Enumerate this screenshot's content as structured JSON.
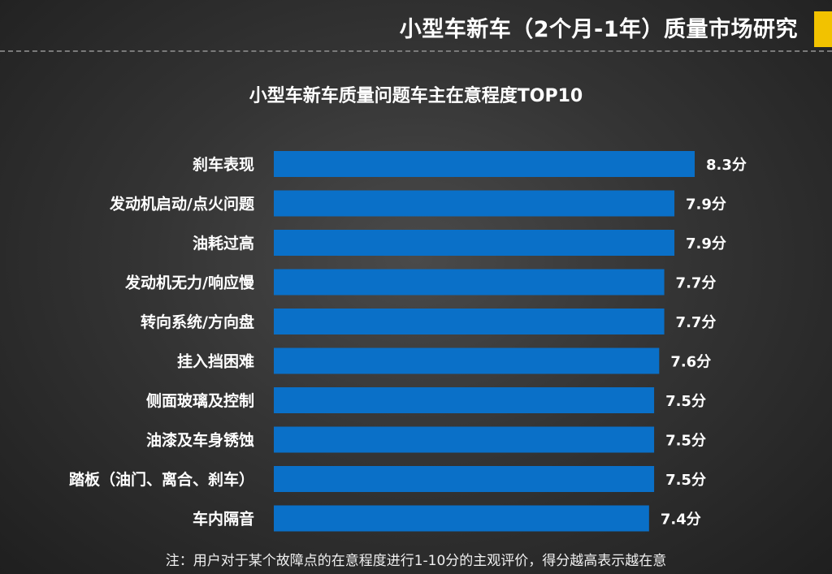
{
  "header": {
    "title": "小型车新车（2个月-1年）质量市场研究",
    "accent_color": "#f2c200"
  },
  "chart_data": {
    "type": "bar",
    "orientation": "horizontal",
    "title": "小型车新车质量问题车主在意程度TOP10",
    "categories": [
      "刹车表现",
      "发动机启动/点火问题",
      "油耗过高",
      "发动机无力/响应慢",
      "转向系统/方向盘",
      "挂入挡困难",
      "侧面玻璃及控制",
      "油漆及车身锈蚀",
      "踏板（油门、离合、刹车）",
      "车内隔音"
    ],
    "values": [
      8.3,
      7.9,
      7.9,
      7.7,
      7.7,
      7.6,
      7.5,
      7.5,
      7.5,
      7.4
    ],
    "value_labels": [
      "8.3分",
      "7.9分",
      "7.9分",
      "7.7分",
      "7.7分",
      "7.6分",
      "7.5分",
      "7.5分",
      "7.5分",
      "7.4分"
    ],
    "bar_color": "#0a70c8",
    "xlim": [
      0,
      8.3
    ],
    "grid": false
  },
  "footnote": "注：用户对于某个故障点的在意程度进行1-10分的主观评价，得分越高表示越在意"
}
